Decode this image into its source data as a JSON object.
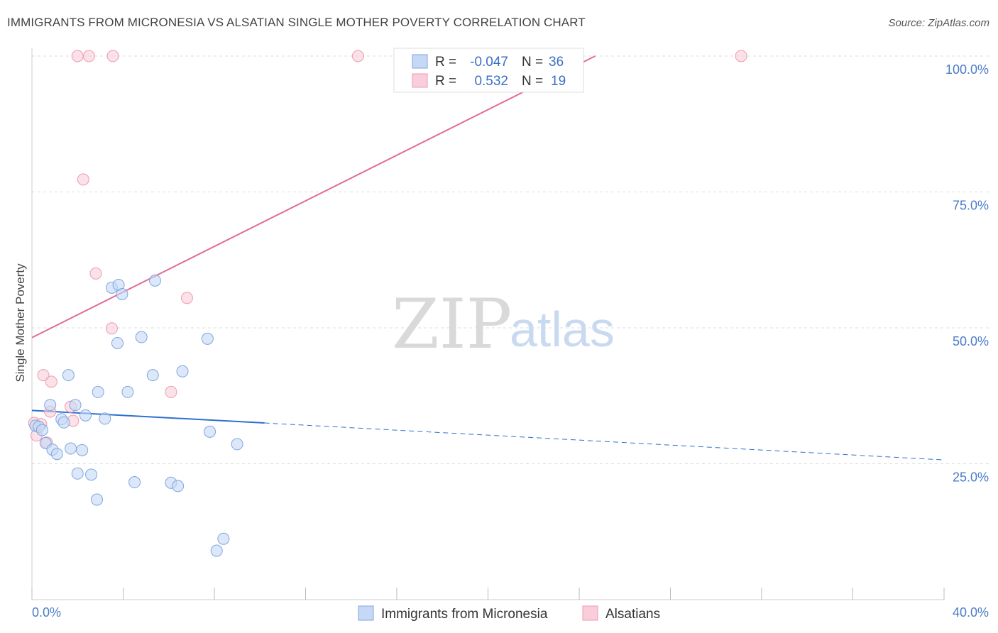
{
  "title": "IMMIGRANTS FROM MICRONESIA VS ALSATIAN SINGLE MOTHER POVERTY CORRELATION CHART",
  "source": "Source: ZipAtlas.com",
  "watermark": {
    "zip": "ZIP",
    "atlas": "atlas"
  },
  "legend": {
    "r_label": "R =",
    "n_label": "N =",
    "rows": [
      {
        "r": "-0.047",
        "n": "36"
      },
      {
        "r": "0.532",
        "n": "19"
      }
    ]
  },
  "colors": {
    "blue_fill": "#c5d8f5",
    "blue_stroke": "#7ea6e0",
    "blue_line": "#2f6fcf",
    "pink_fill": "#f9cdd9",
    "pink_stroke": "#ee9ab3",
    "pink_line": "#e36b93",
    "grid": "#dddddd",
    "tick_text": "#4a7cc9"
  },
  "chart_data": {
    "type": "scatter",
    "title": "IMMIGRANTS FROM MICRONESIA VS ALSATIAN SINGLE MOTHER POVERTY CORRELATION CHART",
    "xlabel": "",
    "ylabel": "Single Mother Poverty",
    "xlim": [
      0,
      40
    ],
    "ylim": [
      0,
      100
    ],
    "x_tick_labels": [
      "0.0%",
      "40.0%"
    ],
    "y_ticks": [
      25,
      50,
      75,
      100
    ],
    "y_tick_labels": [
      "25.0%",
      "50.0%",
      "75.0%",
      "100.0%"
    ],
    "grid": true,
    "legend_position": "bottom",
    "series": [
      {
        "name": "Immigrants from Micronesia",
        "color": "#7ea6e0",
        "r": -0.047,
        "n": 36,
        "trend": {
          "x": [
            0,
            10.2,
            40
          ],
          "y": [
            34.8,
            32.5,
            25.7
          ],
          "solid_until": 10.2
        },
        "points": [
          [
            0.15,
            32.0
          ],
          [
            0.3,
            31.8
          ],
          [
            0.45,
            31.2
          ],
          [
            0.6,
            28.8
          ],
          [
            0.8,
            35.8
          ],
          [
            0.9,
            27.6
          ],
          [
            1.1,
            26.8
          ],
          [
            1.3,
            33.2
          ],
          [
            1.4,
            32.6
          ],
          [
            1.6,
            41.3
          ],
          [
            1.7,
            27.8
          ],
          [
            1.9,
            35.8
          ],
          [
            2.0,
            23.2
          ],
          [
            2.2,
            27.5
          ],
          [
            2.35,
            33.9
          ],
          [
            2.6,
            23.0
          ],
          [
            2.85,
            18.4
          ],
          [
            2.9,
            38.2
          ],
          [
            3.2,
            33.3
          ],
          [
            3.5,
            57.4
          ],
          [
            3.75,
            47.2
          ],
          [
            3.8,
            57.9
          ],
          [
            3.95,
            56.2
          ],
          [
            4.2,
            38.2
          ],
          [
            4.5,
            21.6
          ],
          [
            4.8,
            48.3
          ],
          [
            5.3,
            41.3
          ],
          [
            5.4,
            58.7
          ],
          [
            6.1,
            21.5
          ],
          [
            6.4,
            20.9
          ],
          [
            6.6,
            42.0
          ],
          [
            7.7,
            48.0
          ],
          [
            7.8,
            30.9
          ],
          [
            8.1,
            9.0
          ],
          [
            8.4,
            11.2
          ],
          [
            9.0,
            28.6
          ]
        ]
      },
      {
        "name": "Alsatians",
        "color": "#ee9ab3",
        "r": 0.532,
        "n": 19,
        "trend": {
          "x": [
            0,
            24.7
          ],
          "y": [
            48.2,
            100
          ]
        },
        "points": [
          [
            0.1,
            32.5
          ],
          [
            0.2,
            30.2
          ],
          [
            0.4,
            32.3
          ],
          [
            0.5,
            41.3
          ],
          [
            0.65,
            28.9
          ],
          [
            0.8,
            34.6
          ],
          [
            0.85,
            40.1
          ],
          [
            1.7,
            35.5
          ],
          [
            1.8,
            32.9
          ],
          [
            2.0,
            100
          ],
          [
            2.25,
            77.3
          ],
          [
            2.5,
            100
          ],
          [
            2.8,
            60.0
          ],
          [
            3.5,
            49.9
          ],
          [
            3.55,
            100
          ],
          [
            6.1,
            38.2
          ],
          [
            6.8,
            55.5
          ],
          [
            14.3,
            100
          ],
          [
            31.1,
            100
          ]
        ]
      }
    ]
  }
}
